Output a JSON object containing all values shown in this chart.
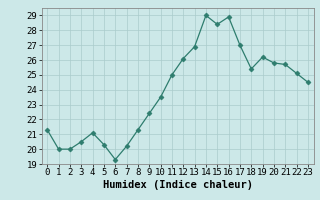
{
  "x": [
    0,
    1,
    2,
    3,
    4,
    5,
    6,
    7,
    8,
    9,
    10,
    11,
    12,
    13,
    14,
    15,
    16,
    17,
    18,
    19,
    20,
    21,
    22,
    23
  ],
  "y": [
    21.3,
    20.0,
    20.0,
    20.5,
    21.1,
    20.3,
    19.3,
    20.2,
    21.3,
    22.4,
    23.5,
    25.0,
    26.1,
    26.9,
    29.0,
    28.4,
    28.9,
    27.0,
    25.4,
    26.2,
    25.8,
    25.7,
    25.1,
    24.5
  ],
  "line_color": "#2e7d6e",
  "marker": "D",
  "marker_size": 2.5,
  "bg_color": "#cce8e8",
  "grid_color": "#aacccc",
  "xlabel": "Humidex (Indice chaleur)",
  "tick_fontsize": 6.5,
  "xlabel_fontsize": 7.5,
  "xlim": [
    -0.5,
    23.5
  ],
  "ylim": [
    19,
    29.5
  ],
  "yticks": [
    19,
    20,
    21,
    22,
    23,
    24,
    25,
    26,
    27,
    28,
    29
  ],
  "xticks": [
    0,
    1,
    2,
    3,
    4,
    5,
    6,
    7,
    8,
    9,
    10,
    11,
    12,
    13,
    14,
    15,
    16,
    17,
    18,
    19,
    20,
    21,
    22,
    23
  ]
}
